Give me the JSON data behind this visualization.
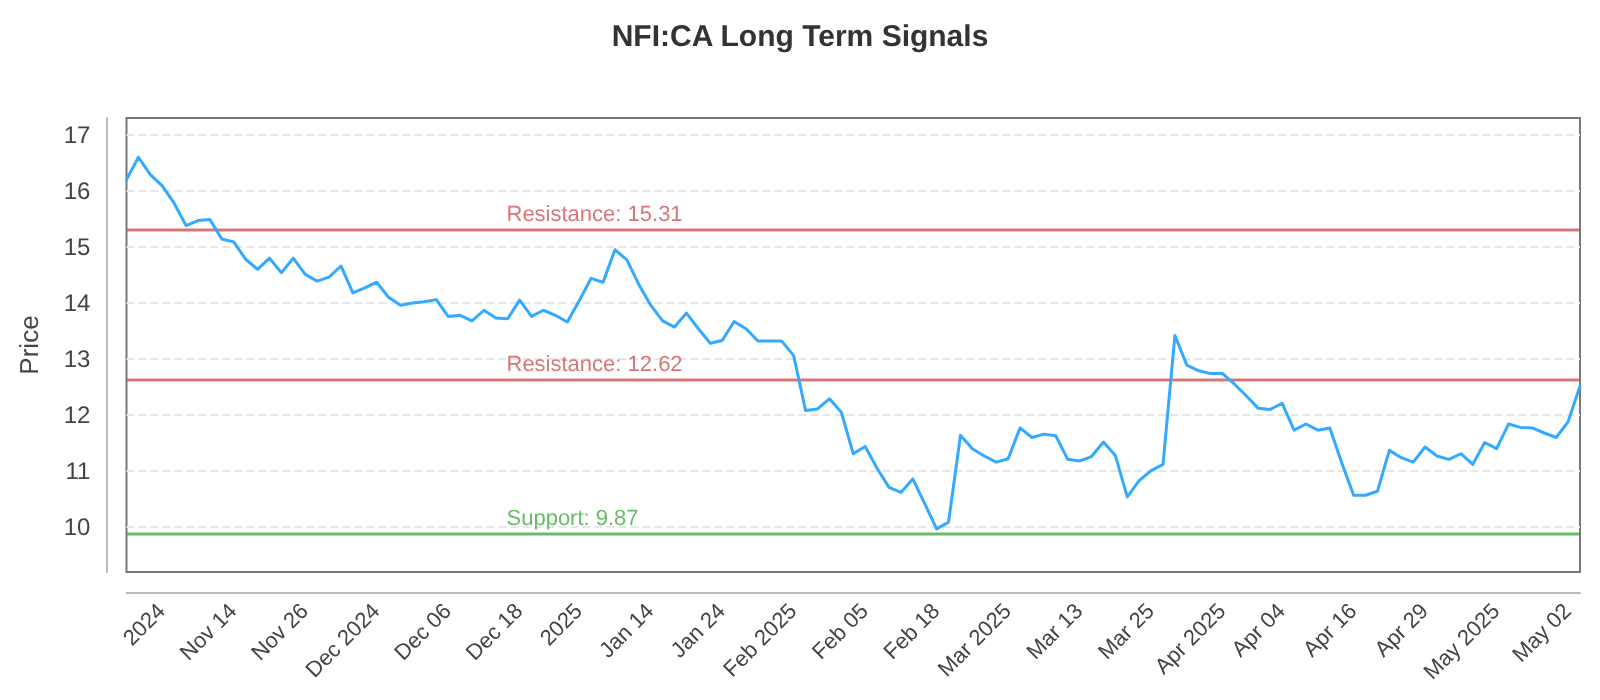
{
  "chart_data": {
    "type": "line",
    "title": "NFI:CA Long Term Signals",
    "ylabel": "Price",
    "categories": [
      null,
      null,
      null,
      "2024",
      null,
      null,
      null,
      null,
      null,
      "Nov 14",
      null,
      null,
      null,
      null,
      null,
      "Nov 26",
      null,
      null,
      null,
      null,
      null,
      "Dec 2024",
      null,
      null,
      null,
      null,
      null,
      "Dec 06",
      null,
      null,
      null,
      null,
      null,
      "Dec 18",
      null,
      null,
      null,
      null,
      "2025",
      null,
      null,
      null,
      null,
      null,
      "Jan 14",
      null,
      null,
      null,
      null,
      null,
      "Jan 24",
      null,
      null,
      null,
      null,
      null,
      "Feb 2025",
      null,
      null,
      null,
      null,
      null,
      "Feb 05",
      null,
      null,
      null,
      null,
      null,
      "Feb 18",
      null,
      null,
      null,
      null,
      null,
      "Mar 2025",
      null,
      null,
      null,
      null,
      null,
      "Mar 13",
      null,
      null,
      null,
      null,
      null,
      "Mar 25",
      null,
      null,
      null,
      null,
      null,
      "Apr 2025",
      null,
      null,
      null,
      null,
      "Apr 04",
      null,
      null,
      null,
      null,
      null,
      "Apr 16",
      null,
      null,
      null,
      null,
      null,
      "Apr 29",
      null,
      null,
      null,
      null,
      null,
      "May 2025",
      null,
      null,
      null,
      null,
      null,
      "May 02",
      null
    ],
    "series": [
      {
        "color": "#33aaff",
        "values": [
          16.2,
          16.6,
          16.29,
          16.09,
          15.78,
          15.38,
          15.47,
          15.49,
          15.14,
          15.09,
          14.78,
          14.6,
          14.8,
          14.54,
          14.8,
          14.51,
          14.39,
          14.46,
          14.66,
          14.18,
          14.27,
          14.37,
          14.1,
          13.96,
          14.0,
          14.02,
          14.06,
          13.76,
          13.78,
          13.68,
          13.87,
          13.73,
          13.72,
          14.05,
          13.76,
          13.87,
          13.78,
          13.66,
          14.04,
          14.44,
          14.37,
          14.95,
          14.77,
          14.33,
          13.96,
          13.68,
          13.57,
          13.82,
          13.54,
          13.28,
          13.33,
          13.67,
          13.54,
          13.32,
          13.32,
          13.32,
          13.06,
          12.08,
          12.11,
          12.29,
          12.05,
          11.31,
          11.44,
          11.05,
          10.71,
          10.62,
          10.86,
          10.42,
          9.97,
          10.09,
          11.64,
          11.4,
          11.27,
          11.16,
          11.22,
          11.77,
          11.6,
          11.66,
          11.63,
          11.21,
          11.18,
          11.26,
          11.52,
          11.28,
          10.54,
          10.83,
          11.01,
          11.12,
          13.42,
          12.89,
          12.79,
          12.74,
          12.74,
          12.55,
          12.34,
          12.12,
          12.1,
          12.21,
          11.73,
          11.84,
          11.73,
          11.77,
          11.15,
          10.57,
          10.57,
          10.64,
          11.37,
          11.24,
          11.16,
          11.43,
          11.27,
          11.21,
          11.31,
          11.12,
          11.51,
          11.4,
          11.84,
          11.78,
          11.77,
          11.68,
          11.6,
          11.88,
          12.52
        ]
      }
    ],
    "ylim": [
      9.2,
      17.3
    ],
    "yticks": [
      10,
      11,
      12,
      13,
      14,
      15,
      16,
      17
    ],
    "grid": "y",
    "marker": "none",
    "line_style": "solid",
    "ref_lines": [
      {
        "axis": "y",
        "value": 15.31,
        "label": "Resistance: 15.31",
        "color": "#cc5555"
      },
      {
        "axis": "y",
        "value": 12.62,
        "label": "Resistance: 12.62",
        "color": "#cc5555"
      },
      {
        "axis": "y",
        "value": 9.87,
        "label": "Support: 9.87",
        "color": "#44aa44"
      }
    ]
  }
}
